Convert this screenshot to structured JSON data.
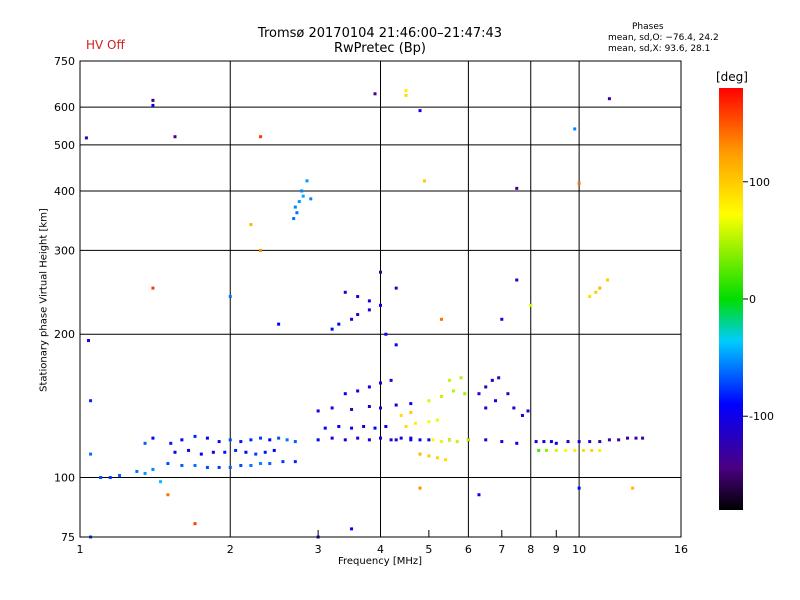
{
  "header": {
    "title": "Tromsø 20170104 21:46:00–21:47:43",
    "subtitle": "RwPretec (Bp)",
    "status": "HV Off",
    "phases_title": "Phases",
    "phases_o": "mean, sd,O: −76.4, 24.2",
    "phases_x": "mean, sd,X:  93.6, 28.1"
  },
  "colors": {
    "status": "#d02020",
    "grid": "#000000"
  },
  "chart_data": {
    "type": "scatter",
    "xlabel": "Frequency [MHz]",
    "ylabel": "Stationary phase Virtual Height [km]",
    "x_scale": "log",
    "y_scale": "log",
    "xlim": [
      1,
      16
    ],
    "ylim": [
      75,
      750
    ],
    "x_ticks": [
      1,
      2,
      4,
      6,
      8,
      10,
      16
    ],
    "x_minor_ticks": [
      3,
      5,
      7,
      9
    ],
    "y_ticks": [
      75,
      100,
      200,
      300,
      400,
      500,
      600,
      750
    ],
    "grid": true,
    "colorbar": {
      "unit": "[deg]",
      "range": [
        -180,
        180
      ],
      "ticks": [
        100,
        0,
        -100
      ]
    },
    "series": [
      {
        "values": [
          [
            1.52,
            118,
            -85
          ],
          [
            1.6,
            120,
            -90
          ],
          [
            1.7,
            122,
            -80
          ],
          [
            1.8,
            121,
            -95
          ],
          [
            1.9,
            119,
            -88
          ],
          [
            2.0,
            120,
            -70
          ],
          [
            2.1,
            119,
            -85
          ],
          [
            2.2,
            120,
            -80
          ],
          [
            2.3,
            121,
            -75
          ],
          [
            2.4,
            120,
            -90
          ],
          [
            2.5,
            121,
            -70
          ],
          [
            2.6,
            120,
            -60
          ],
          [
            2.7,
            119,
            -65
          ],
          [
            1.55,
            113,
            -100
          ],
          [
            1.65,
            114,
            -95
          ],
          [
            1.75,
            112,
            -90
          ],
          [
            1.85,
            113,
            -105
          ],
          [
            1.95,
            113,
            -85
          ],
          [
            2.05,
            114,
            -80
          ],
          [
            2.15,
            113,
            -95
          ],
          [
            2.25,
            112,
            -75
          ],
          [
            2.35,
            113,
            -85
          ],
          [
            2.45,
            114,
            -90
          ],
          [
            1.5,
            107,
            -70
          ],
          [
            1.6,
            106,
            -65
          ],
          [
            1.7,
            106,
            -60
          ],
          [
            1.8,
            105,
            -70
          ],
          [
            1.9,
            105,
            -75
          ],
          [
            2.0,
            105,
            -65
          ],
          [
            2.1,
            106,
            -70
          ],
          [
            2.2,
            106,
            -60
          ],
          [
            2.3,
            107,
            -55
          ],
          [
            2.4,
            107,
            -65
          ],
          [
            2.55,
            108,
            -75
          ],
          [
            2.7,
            108,
            -80
          ],
          [
            1.05,
            112,
            -60
          ],
          [
            1.1,
            100,
            -70
          ],
          [
            1.15,
            100,
            -75
          ],
          [
            1.2,
            101,
            -65
          ],
          [
            1.3,
            103,
            -60
          ],
          [
            1.35,
            102,
            -50
          ],
          [
            1.4,
            104,
            -55
          ],
          [
            1.45,
            98,
            -40
          ],
          [
            1.35,
            118,
            -65
          ],
          [
            1.4,
            121,
            -90
          ],
          [
            2.7,
            370,
            -55
          ],
          [
            2.75,
            380,
            -50
          ],
          [
            2.8,
            390,
            -45
          ],
          [
            2.72,
            360,
            -60
          ],
          [
            2.78,
            400,
            -55
          ],
          [
            2.85,
            420,
            -50
          ],
          [
            2.9,
            385,
            -55
          ],
          [
            2.68,
            350,
            -60
          ],
          [
            3.0,
            120,
            -95
          ],
          [
            3.2,
            121,
            -100
          ],
          [
            3.4,
            120,
            -110
          ],
          [
            3.6,
            121,
            -105
          ],
          [
            3.8,
            120,
            -115
          ],
          [
            4.0,
            121,
            -100
          ],
          [
            4.2,
            120,
            -110
          ],
          [
            4.4,
            121,
            -105
          ],
          [
            4.6,
            120,
            -95
          ],
          [
            4.8,
            120,
            -100
          ],
          [
            3.1,
            127,
            -90
          ],
          [
            3.3,
            128,
            -95
          ],
          [
            3.5,
            127,
            -100
          ],
          [
            3.7,
            128,
            -105
          ],
          [
            3.9,
            127,
            -90
          ],
          [
            4.1,
            128,
            -95
          ],
          [
            3.0,
            138,
            -100
          ],
          [
            3.2,
            140,
            -110
          ],
          [
            3.5,
            139,
            -120
          ],
          [
            3.8,
            141,
            -115
          ],
          [
            4.0,
            140,
            -110
          ],
          [
            4.3,
            142,
            -105
          ],
          [
            4.6,
            143,
            -100
          ],
          [
            3.4,
            150,
            -90
          ],
          [
            3.6,
            152,
            -95
          ],
          [
            3.8,
            155,
            -100
          ],
          [
            4.0,
            158,
            -105
          ],
          [
            4.2,
            160,
            -110
          ],
          [
            3.2,
            205,
            -90
          ],
          [
            3.3,
            210,
            -95
          ],
          [
            3.5,
            215,
            -100
          ],
          [
            3.6,
            220,
            -105
          ],
          [
            3.8,
            225,
            -110
          ],
          [
            4.0,
            230,
            -105
          ],
          [
            4.1,
            200,
            -100
          ],
          [
            4.3,
            190,
            -95
          ],
          [
            3.4,
            245,
            -110
          ],
          [
            3.6,
            240,
            -105
          ],
          [
            3.8,
            235,
            -100
          ],
          [
            4.3,
            120,
            -115
          ],
          [
            4.6,
            121,
            -110
          ],
          [
            5.0,
            120,
            -105
          ],
          [
            5.5,
            120,
            -110
          ],
          [
            6.0,
            120,
            -115
          ],
          [
            6.5,
            120,
            -110
          ],
          [
            7.0,
            119,
            -105
          ],
          [
            7.5,
            118,
            -100
          ],
          [
            4.5,
            128,
            90
          ],
          [
            4.7,
            130,
            80
          ],
          [
            5.0,
            131,
            70
          ],
          [
            5.2,
            132,
            65
          ],
          [
            4.4,
            135,
            90
          ],
          [
            4.6,
            137,
            100
          ],
          [
            4.8,
            112,
            110
          ],
          [
            5.0,
            111,
            100
          ],
          [
            5.2,
            110,
            95
          ],
          [
            5.4,
            109,
            90
          ],
          [
            5.0,
            145,
            60
          ],
          [
            5.3,
            148,
            55
          ],
          [
            5.6,
            152,
            50
          ],
          [
            5.9,
            150,
            45
          ],
          [
            5.5,
            160,
            55
          ],
          [
            5.8,
            162,
            50
          ],
          [
            5.1,
            120,
            70
          ],
          [
            5.3,
            119,
            65
          ],
          [
            5.5,
            120,
            60
          ],
          [
            5.7,
            119,
            55
          ],
          [
            6.0,
            120,
            50
          ],
          [
            6.3,
            150,
            -115
          ],
          [
            6.5,
            155,
            -120
          ],
          [
            6.7,
            160,
            -110
          ],
          [
            6.9,
            162,
            -115
          ],
          [
            6.5,
            140,
            -110
          ],
          [
            6.8,
            145,
            -105
          ],
          [
            7.2,
            150,
            -120
          ],
          [
            7.4,
            140,
            -115
          ],
          [
            7.7,
            135,
            -110
          ],
          [
            7.9,
            138,
            -105
          ],
          [
            8.2,
            119,
            -100
          ],
          [
            8.5,
            119,
            -105
          ],
          [
            8.8,
            119,
            -95
          ],
          [
            9.0,
            118,
            -100
          ],
          [
            9.5,
            119,
            -110
          ],
          [
            10.0,
            119,
            -105
          ],
          [
            10.5,
            119,
            -120
          ],
          [
            11.0,
            119,
            -125
          ],
          [
            11.5,
            120,
            -130
          ],
          [
            12.0,
            120,
            -140
          ],
          [
            12.5,
            121,
            -135
          ],
          [
            13.0,
            121,
            -140
          ],
          [
            13.4,
            121,
            -130
          ],
          [
            8.3,
            114,
            20
          ],
          [
            8.6,
            114,
            40
          ],
          [
            9.0,
            114,
            60
          ],
          [
            9.4,
            114,
            70
          ],
          [
            9.8,
            114,
            80
          ],
          [
            10.2,
            114,
            90
          ],
          [
            10.6,
            114,
            95
          ],
          [
            11.0,
            114,
            80
          ],
          [
            10.5,
            240,
            90
          ],
          [
            10.8,
            245,
            100
          ],
          [
            11.0,
            250,
            110
          ],
          [
            11.4,
            260,
            100
          ],
          [
            9.8,
            540,
            -55
          ],
          [
            10.0,
            415,
            140
          ],
          [
            7.5,
            405,
            -140
          ],
          [
            4.8,
            590,
            -100
          ],
          [
            4.9,
            420,
            100
          ],
          [
            1.4,
            620,
            -150
          ],
          [
            1.4,
            605,
            -90
          ],
          [
            1.55,
            520,
            -140
          ],
          [
            2.3,
            520,
            160
          ],
          [
            3.9,
            640,
            -140
          ],
          [
            4.5,
            635,
            90
          ],
          [
            4.5,
            650,
            80
          ],
          [
            11.5,
            625,
            -130
          ],
          [
            1.4,
            250,
            160
          ],
          [
            2.2,
            340,
            110
          ],
          [
            2.3,
            300,
            130
          ],
          [
            2.0,
            240,
            -60
          ],
          [
            2.5,
            210,
            -90
          ],
          [
            4.0,
            270,
            -130
          ],
          [
            4.3,
            250,
            -110
          ],
          [
            5.3,
            215,
            140
          ],
          [
            7.0,
            215,
            -100
          ],
          [
            8.0,
            230,
            60
          ],
          [
            7.5,
            260,
            -120
          ],
          [
            1.7,
            80,
            160
          ],
          [
            1.5,
            92,
            140
          ],
          [
            1.05,
            75,
            -70
          ],
          [
            3.0,
            75,
            -120
          ],
          [
            3.5,
            78,
            -90
          ],
          [
            4.8,
            95,
            130
          ],
          [
            6.3,
            92,
            -100
          ],
          [
            10.0,
            95,
            -90
          ],
          [
            12.8,
            95,
            110
          ],
          [
            1.04,
            194,
            -100
          ],
          [
            1.05,
            145,
            -80
          ],
          [
            1.03,
            517,
            -120
          ]
        ]
      }
    ]
  }
}
